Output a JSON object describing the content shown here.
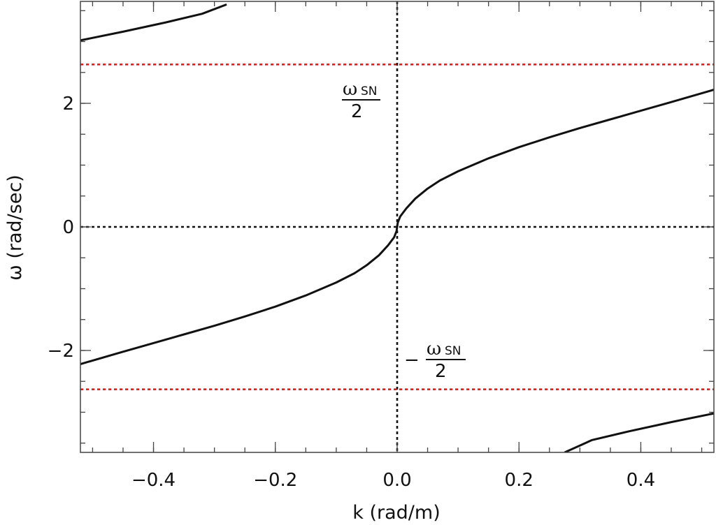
{
  "chart_data": {
    "type": "line",
    "xlabel": "k (rad/m)",
    "ylabel": "ω (rad/sec)",
    "xlim": [
      -0.52,
      0.52
    ],
    "ylim": [
      -3.65,
      3.65
    ],
    "x_ticks": [
      {
        "value": -0.4,
        "label": "−0.4"
      },
      {
        "value": -0.2,
        "label": "−0.2"
      },
      {
        "value": 0.0,
        "label": "0.0"
      },
      {
        "value": 0.2,
        "label": "0.2"
      },
      {
        "value": 0.4,
        "label": "0.4"
      }
    ],
    "y_ticks": [
      {
        "value": -2,
        "label": "−2"
      },
      {
        "value": 0,
        "label": "0"
      },
      {
        "value": 2,
        "label": "2"
      }
    ],
    "x_minor_step": 0.05,
    "y_minor_step": 0.5,
    "grid": false,
    "series": [
      {
        "color": "#111111",
        "style": "solid",
        "x": [
          -0.52,
          -0.45,
          -0.4,
          -0.35,
          -0.3,
          -0.25,
          -0.2,
          -0.15,
          -0.1,
          -0.07,
          -0.05,
          -0.03,
          -0.015,
          -0.005,
          -0.001,
          0.0,
          0.001,
          0.005,
          0.015,
          0.03,
          0.05,
          0.07,
          0.1,
          0.15,
          0.2,
          0.25,
          0.3,
          0.35,
          0.4,
          0.45,
          0.52
        ],
        "y": [
          -2.22,
          -2.02,
          -1.88,
          -1.74,
          -1.6,
          -1.45,
          -1.29,
          -1.11,
          -0.9,
          -0.75,
          -0.62,
          -0.46,
          -0.3,
          -0.17,
          -0.07,
          0.0,
          0.07,
          0.17,
          0.3,
          0.46,
          0.62,
          0.75,
          0.9,
          1.11,
          1.29,
          1.45,
          1.6,
          1.74,
          1.88,
          2.02,
          2.22
        ]
      },
      {
        "color": "#111111",
        "style": "solid",
        "x": [
          -0.52,
          -0.45,
          -0.38,
          -0.32,
          -0.28
        ],
        "y": [
          3.02,
          3.16,
          3.31,
          3.45,
          3.6
        ]
      },
      {
        "color": "#111111",
        "style": "solid",
        "x": [
          0.275,
          0.32,
          0.38,
          0.45,
          0.52
        ],
        "y": [
          -3.65,
          -3.45,
          -3.31,
          -3.16,
          -3.02
        ]
      }
    ],
    "reference_lines": [
      {
        "orientation": "horizontal",
        "value": 2.63,
        "color": "#e02020",
        "style": "dotted"
      },
      {
        "orientation": "horizontal",
        "value": -2.63,
        "color": "#e02020",
        "style": "dotted"
      },
      {
        "orientation": "horizontal",
        "value": 0,
        "color": "#111111",
        "style": "dotted"
      },
      {
        "orientation": "vertical",
        "value": 0,
        "color": "#111111",
        "style": "dotted"
      }
    ],
    "annotations": [
      {
        "id": "upper",
        "symbol": "ω",
        "subscript": "SN",
        "denominator": "2",
        "sign": ""
      },
      {
        "id": "lower",
        "symbol": "ω",
        "subscript": "SN",
        "denominator": "2",
        "sign": "−"
      }
    ]
  }
}
